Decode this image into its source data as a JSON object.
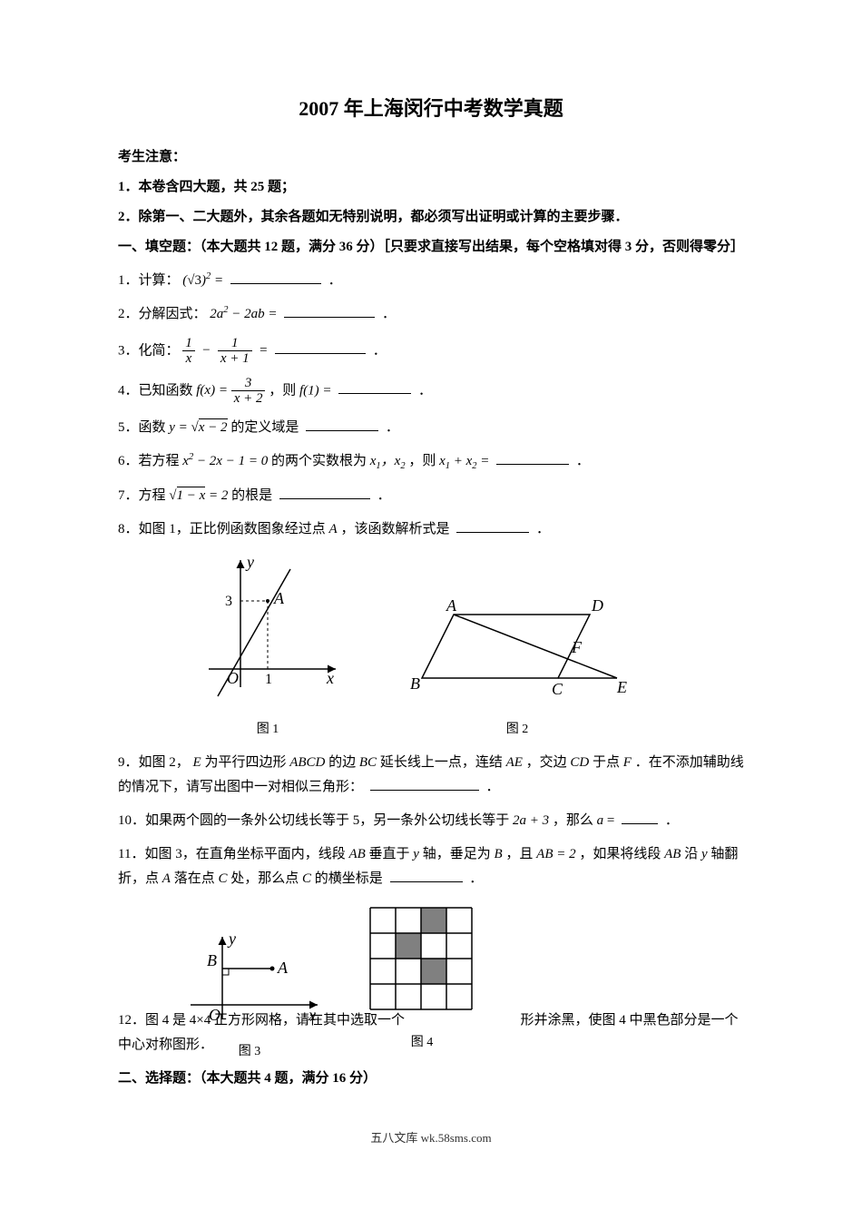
{
  "title": "2007 年上海闵行中考数学真题",
  "notice_header": "考生注意：",
  "notice_1": "1．本卷含四大题，共 25 题；",
  "notice_2": "2．除第一、二大题外，其余各题如无特别说明，都必须写出证明或计算的主要步骤．",
  "section1": "一、填空题：（本大题共 12 题，满分 36 分）［只要求直接写出结果，每个空格填对得 3 分，否则得零分］",
  "q1_pre": "1．计算：",
  "q1_math": "(√3)² =",
  "q1_post": "．",
  "q2_pre": "2．分解因式：",
  "q2_math": "2a² − 2ab =",
  "q2_post": "．",
  "q3_pre": "3．化简：",
  "q3_post": "．",
  "q4_pre": "4．已知函数 ",
  "q4_mid": "，则 f(1) =",
  "q4_post": "．",
  "q5_pre": "5．函数 ",
  "q5_math": "y = √(x − 2)",
  "q5_mid": " 的定义域是",
  "q5_post": "．",
  "q6_pre": "6．若方程 ",
  "q6_math1": "x² − 2x − 1 = 0",
  "q6_mid1": " 的两个实数根为 ",
  "q6_math2": "x₁，x₂",
  "q6_mid2": "，则 ",
  "q6_math3": "x₁ + x₂ =",
  "q6_post": "．",
  "q7_pre": "7．方程 ",
  "q7_math": "√(1 − x) = 2",
  "q7_mid": " 的根是",
  "q7_post": "．",
  "q8_pre": "8．如图 1，正比例函数图象经过点 ",
  "q8_A": "A",
  "q8_mid": "，该函数解析式是",
  "q8_post": "．",
  "fig1_label": "图 1",
  "fig2_label": "图 2",
  "fig1": {
    "y_label": "y",
    "x_label": "x",
    "O_label": "O",
    "A_label": "A",
    "tick_x": "1",
    "tick_y": "3",
    "colors": {
      "axis": "#000000",
      "line": "#000000",
      "dash": "#000000"
    }
  },
  "fig2": {
    "A": "A",
    "B": "B",
    "C": "C",
    "D": "D",
    "E": "E",
    "F": "F",
    "colors": {
      "line": "#000000"
    }
  },
  "q9_pre": "9．如图 2，",
  "q9_E": "E",
  "q9_mid1": " 为平行四边形 ",
  "q9_ABCD": "ABCD",
  "q9_mid2": " 的边 ",
  "q9_BC": "BC",
  "q9_mid3": " 延长线上一点，连结 ",
  "q9_AE": "AE",
  "q9_mid4": "，交边 ",
  "q9_CD": "CD",
  "q9_mid5": " 于点 ",
  "q9_F": "F",
  "q9_mid6": "．在不添加辅助线的情况下，请写出图中一对相似三角形：",
  "q9_post": "．",
  "q10_pre": "10．如果两个圆的一条外公切线长等于 5，另一条外公切线长等于 ",
  "q10_math": "2a + 3",
  "q10_mid": "，那么 a =",
  "q10_post": "．",
  "q11_pre": "11．如图 3，在直角坐标平面内，线段 ",
  "q11_AB1": "AB",
  "q11_mid1": " 垂直于 ",
  "q11_y": "y",
  "q11_mid2": " 轴，垂足为 ",
  "q11_B": "B",
  "q11_mid3": "，且 ",
  "q11_AB2": "AB = 2",
  "q11_mid4": "，如果将线段 ",
  "q11_AB3": "AB",
  "q11_mid5": " 沿 ",
  "q11_y2": "y",
  "q11_mid6": " 轴翻折，点 ",
  "q11_A": "A",
  "q11_mid7": " 落在点 ",
  "q11_C": "C",
  "q11_mid8": " 处，那么点 ",
  "q11_C2": "C",
  "q11_mid9": " 的横坐标是",
  "q11_post": "．",
  "fig3_label": "图 3",
  "fig3": {
    "y_label": "y",
    "x_label": "x",
    "O_label": "O",
    "A_label": "A",
    "B_label": "B",
    "colors": {
      "axis": "#000000"
    }
  },
  "fig4_label": "图 4",
  "fig4": {
    "grid_color": "#000000",
    "bg_color": "#ffffff",
    "shaded_color": "#808080",
    "cell_size": 28,
    "shaded_cells": [
      [
        0,
        2
      ],
      [
        1,
        1
      ],
      [
        2,
        2
      ]
    ]
  },
  "q12_pre": "12．图 4 是 ",
  "q12_math": "4×4",
  "q12_mid1": " 正方形网格，请在其中选取一个",
  "q12_mid2": "形并涂黑，使图 4 中黑色部分是一个中心对称图形．",
  "section2": "二、选择题：（本大题共 4 题，满分 16 分）",
  "footer": "五八文库 wk.58sms.com"
}
